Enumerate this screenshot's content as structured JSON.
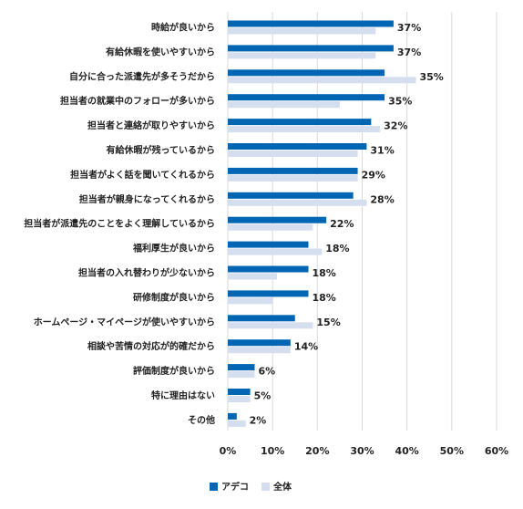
{
  "chart_data": {
    "type": "bar",
    "orientation": "horizontal",
    "categories": [
      "時給が良いから",
      "有給休暇を使いやすいから",
      "自分に合った派遣先が多そうだから",
      "担当者の就業中のフォローが多いから",
      "担当者と連絡が取りやすいから",
      "有給休暇が残っているから",
      "担当者がよく話を聞いてくれるから",
      "担当者が親身になってくれるから",
      "担当者が派遣先のことをよく理解しているから",
      "福利厚生が良いから",
      "担当者の入れ替わりが少ないから",
      "研修制度が良いから",
      "ホームページ・マイページが使いやすいから",
      "相談や苦情の対応が的確だから",
      "評価制度が良いから",
      "特に理由はない",
      "その他"
    ],
    "series": [
      {
        "name": "アデコ",
        "color": "#0066b3",
        "values": [
          37,
          37,
          35,
          35,
          32,
          31,
          29,
          28,
          22,
          18,
          18,
          18,
          15,
          14,
          6,
          5,
          2
        ]
      },
      {
        "name": "全体",
        "color": "#d5deef",
        "values": [
          33,
          33,
          42,
          25,
          34,
          29,
          29,
          31,
          19,
          21,
          11,
          10,
          19,
          14,
          6,
          5,
          4
        ]
      }
    ],
    "value_labels": [
      "37%",
      "37%",
      "35%",
      "35%",
      "32%",
      "31%",
      "29%",
      "28%",
      "22%",
      "18%",
      "18%",
      "18%",
      "15%",
      "14%",
      "6%",
      "5%",
      "2%"
    ],
    "xlim": [
      0,
      60
    ],
    "xticks": [
      0,
      10,
      20,
      30,
      40,
      50,
      60
    ],
    "xtick_labels": [
      "0%",
      "10%",
      "20%",
      "30%",
      "40%",
      "50%",
      "60%"
    ],
    "grid": true,
    "legend_position": "bottom-center",
    "title": "",
    "xlabel": "",
    "ylabel": ""
  }
}
